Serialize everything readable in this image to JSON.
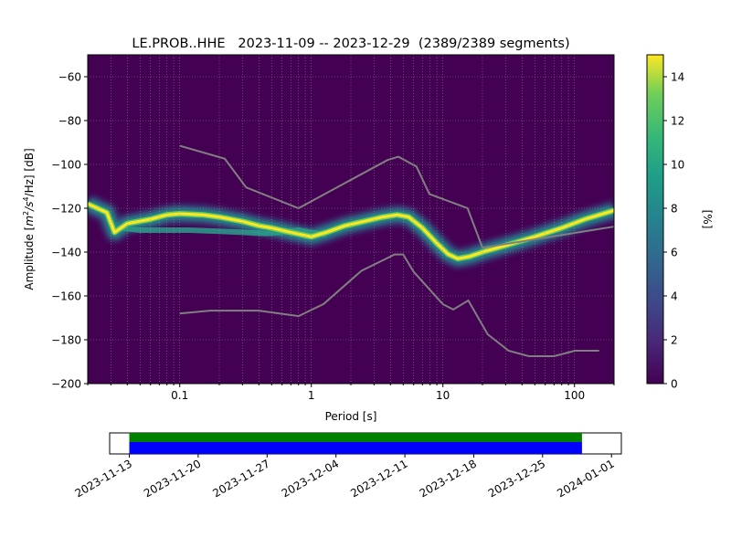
{
  "chart_data": [
    {
      "type": "heatmap",
      "title_station": "LE.PROB..HHE",
      "title_range": "2023-11-09 -- 2023-12-29",
      "title_segments": "(2389/2389 segments)",
      "xlabel": "Period [s]",
      "ylabel_prefix": "Amplitude [",
      "ylabel_unit_m": "m",
      "ylabel_exp1": "2",
      "ylabel_unit_s": "/s",
      "ylabel_exp2": "4",
      "ylabel_suffix": "/Hz] [dB]",
      "x_scale": "log",
      "xlim": [
        0.02,
        200
      ],
      "ylim": [
        -200,
        -50
      ],
      "x_ticks": [
        {
          "value": 0.1,
          "label": "0.1"
        },
        {
          "value": 1,
          "label": "1"
        },
        {
          "value": 10,
          "label": "10"
        },
        {
          "value": 100,
          "label": "100"
        }
      ],
      "y_ticks": [
        {
          "value": -60,
          "label": "−60"
        },
        {
          "value": -80,
          "label": "−80"
        },
        {
          "value": -100,
          "label": "−100"
        },
        {
          "value": -120,
          "label": "−120"
        },
        {
          "value": -140,
          "label": "−140"
        },
        {
          "value": -160,
          "label": "−160"
        },
        {
          "value": -180,
          "label": "−180"
        },
        {
          "value": -200,
          "label": "−200"
        }
      ],
      "grid": true,
      "colormap": "viridis",
      "colorbar": {
        "label": "[%]",
        "range": [
          0,
          15
        ],
        "ticks": [
          {
            "value": 0,
            "label": "0"
          },
          {
            "value": 2,
            "label": "2"
          },
          {
            "value": 4,
            "label": "4"
          },
          {
            "value": 6,
            "label": "6"
          },
          {
            "value": 8,
            "label": "8"
          },
          {
            "value": 10,
            "label": "10"
          },
          {
            "value": 12,
            "label": "12"
          },
          {
            "value": 14,
            "label": "14"
          }
        ]
      },
      "psd_mode": {
        "period": [
          0.02,
          0.028,
          0.032,
          0.04,
          0.06,
          0.08,
          0.1,
          0.15,
          0.2,
          0.3,
          0.4,
          0.5,
          0.7,
          1.0,
          1.3,
          1.8,
          2.5,
          3.5,
          4.5,
          5.5,
          7,
          9,
          11,
          13,
          16,
          20,
          30,
          50,
          80,
          120,
          200
        ],
        "amplitude_db": [
          -118,
          -122,
          -131,
          -127,
          -125,
          -123,
          -122.5,
          -123,
          -124,
          -126,
          -128,
          -129,
          -131,
          -133,
          -131,
          -128,
          -126,
          -124,
          -123,
          -124,
          -129,
          -136,
          -141,
          -143,
          -142,
          -140,
          -137,
          -133,
          -129,
          -125,
          -121
        ]
      },
      "psd_secondary_band": {
        "period": [
          0.035,
          0.05,
          0.08,
          0.12,
          0.2,
          0.3,
          0.45,
          0.6,
          0.8,
          1.0,
          1.3
        ],
        "amplitude_db": [
          -129,
          -130,
          -130,
          -130,
          -130.5,
          -131,
          -131.5,
          -131,
          -130,
          -131,
          -132
        ]
      },
      "nhnm": {
        "period": [
          0.1,
          0.22,
          0.32,
          0.8,
          3.8,
          4.6,
          6.3,
          7.9,
          15.4,
          20,
          354.8
        ],
        "amplitude_db": [
          -91.5,
          -97.4,
          -110.5,
          -120,
          -98,
          -96.5,
          -101,
          -113.5,
          -120,
          -138,
          -126
        ]
      },
      "nlnm": {
        "period": [
          0.1,
          0.17,
          0.4,
          0.8,
          1.24,
          2.4,
          4.3,
          5.0,
          6.0,
          10.0,
          12.0,
          15.6,
          21.9,
          31.6,
          45,
          70,
          101,
          154
        ],
        "amplitude_db": [
          -168,
          -166.7,
          -166.7,
          -169.2,
          -163.7,
          -148.6,
          -141.1,
          -141.1,
          -149.0,
          -163.8,
          -166.2,
          -162.1,
          -177.5,
          -185.0,
          -187.5,
          -187.5,
          -185.0,
          -185.0
        ]
      }
    },
    {
      "type": "timeline",
      "date_ticks": [
        "2023-11-13",
        "2023-11-20",
        "2023-11-27",
        "2023-12-04",
        "2023-12-11",
        "2023-12-18",
        "2023-12-25",
        "2024-01-01"
      ],
      "axis_start": "2023-11-11",
      "axis_end": "2024-01-02",
      "coverage_start": "2023-11-13",
      "coverage_end": "2023-12-29",
      "bar_colors": {
        "top": "#008000",
        "bottom": "#0000ff"
      }
    }
  ],
  "colors": {
    "background_cell": "#440154",
    "noise_model": "#808080"
  }
}
